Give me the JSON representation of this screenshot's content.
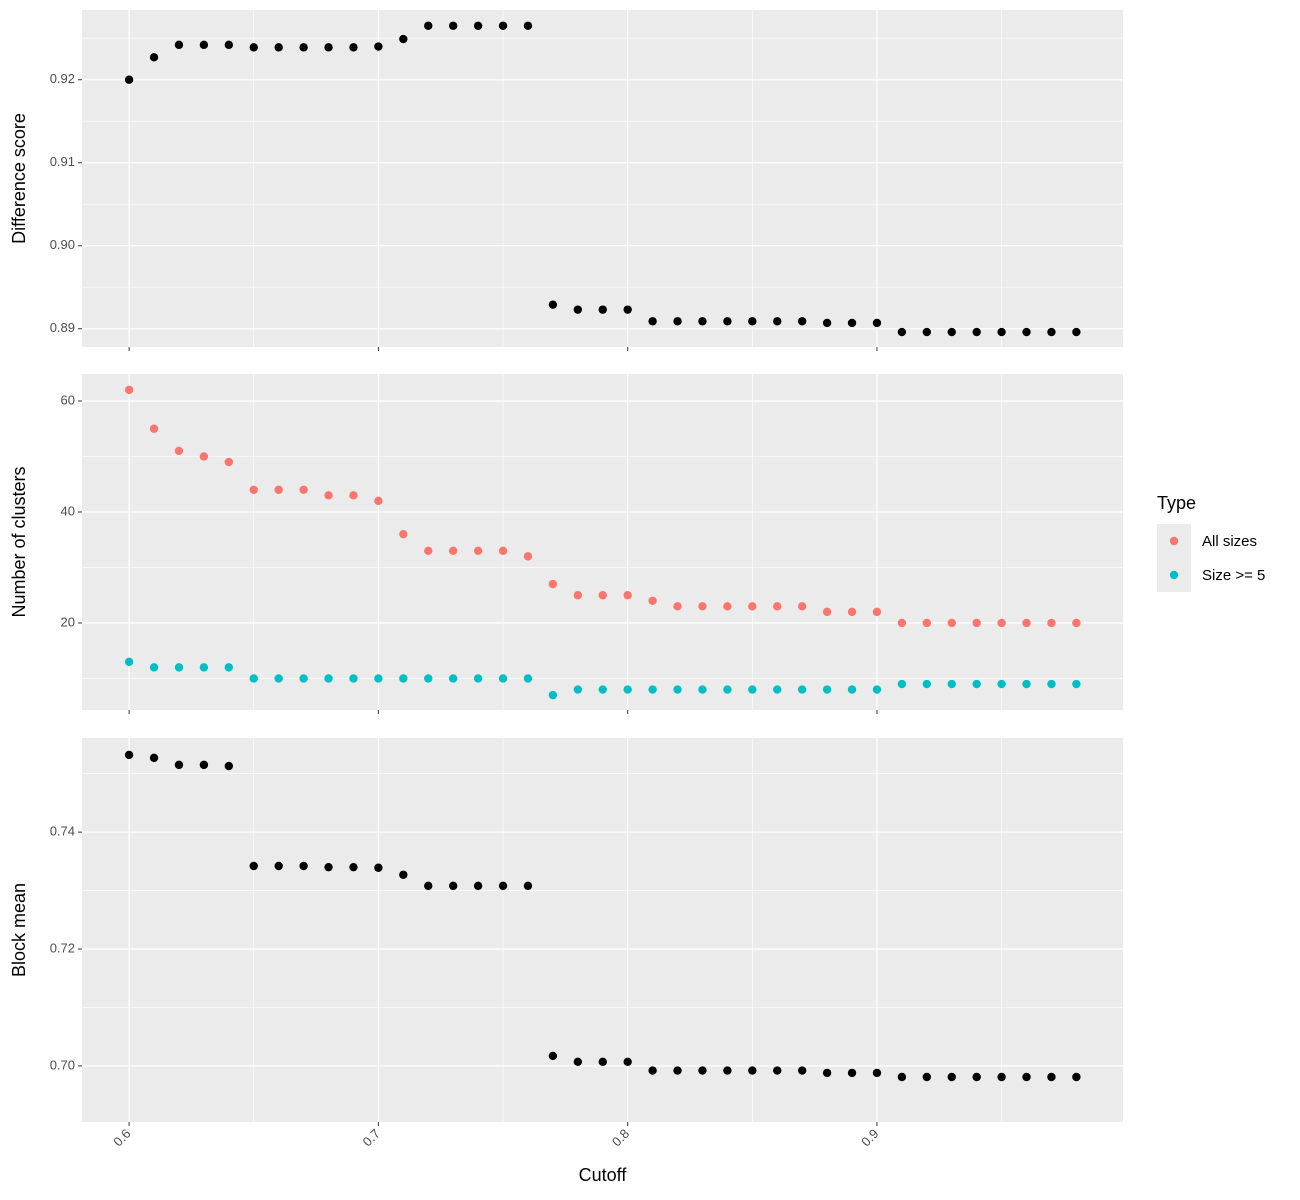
{
  "chart_data": [
    {
      "type": "scatter",
      "y_label": "Difference score",
      "color": "#000000",
      "x": [
        0.6,
        0.61,
        0.62,
        0.63,
        0.64,
        0.65,
        0.66,
        0.67,
        0.68,
        0.69,
        0.7,
        0.71,
        0.72,
        0.73,
        0.74,
        0.75,
        0.76,
        0.77,
        0.78,
        0.79,
        0.8,
        0.81,
        0.82,
        0.83,
        0.84,
        0.85,
        0.86,
        0.87,
        0.88,
        0.89,
        0.9,
        0.91,
        0.92,
        0.93,
        0.94,
        0.95,
        0.96,
        0.97,
        0.98
      ],
      "values": [
        0.92,
        0.9227,
        0.9242,
        0.9242,
        0.9242,
        0.9239,
        0.9239,
        0.9239,
        0.9239,
        0.9239,
        0.924,
        0.9249,
        0.9265,
        0.9265,
        0.9265,
        0.9265,
        0.9265,
        0.8929,
        0.8923,
        0.8923,
        0.8923,
        0.8909,
        0.8909,
        0.8909,
        0.8909,
        0.8909,
        0.8909,
        0.8909,
        0.8907,
        0.8907,
        0.8907,
        0.8896,
        0.8896,
        0.8896,
        0.8896,
        0.8896,
        0.8896,
        0.8896,
        0.8896
      ],
      "xlim": [
        0.5811,
        0.9987
      ],
      "xticks": [
        0.6,
        0.7,
        0.8,
        0.9
      ],
      "ylim": [
        0.8878,
        0.9284
      ],
      "yticks": [
        {
          "value": 0.89,
          "label": "0.89"
        },
        {
          "value": 0.9,
          "label": "0.90"
        },
        {
          "value": 0.91,
          "label": "0.91"
        },
        {
          "value": 0.92,
          "label": "0.92"
        }
      ],
      "grid": true
    },
    {
      "type": "scatter",
      "y_label": "Number of clusters",
      "legend_title": "Type",
      "legend": "right",
      "x": [
        0.6,
        0.61,
        0.62,
        0.63,
        0.64,
        0.65,
        0.66,
        0.67,
        0.68,
        0.69,
        0.7,
        0.71,
        0.72,
        0.73,
        0.74,
        0.75,
        0.76,
        0.77,
        0.78,
        0.79,
        0.8,
        0.81,
        0.82,
        0.83,
        0.84,
        0.85,
        0.86,
        0.87,
        0.88,
        0.89,
        0.9,
        0.91,
        0.92,
        0.93,
        0.94,
        0.95,
        0.96,
        0.97,
        0.98
      ],
      "series": [
        {
          "name": "All sizes",
          "color": "#F8766D",
          "values": [
            62,
            55,
            51,
            50,
            49,
            44,
            44,
            44,
            43,
            43,
            42,
            36,
            33,
            33,
            33,
            33,
            32,
            27,
            25,
            25,
            25,
            24,
            23,
            23,
            23,
            23,
            23,
            23,
            22,
            22,
            22,
            20,
            20,
            20,
            20,
            20,
            20,
            20,
            20
          ]
        },
        {
          "name": "Size >= 5",
          "color": "#00BFC4",
          "values": [
            13,
            12,
            12,
            12,
            12,
            10,
            10,
            10,
            10,
            10,
            10,
            10,
            10,
            10,
            10,
            10,
            10,
            7,
            8,
            8,
            8,
            8,
            8,
            8,
            8,
            8,
            8,
            8,
            8,
            8,
            8,
            9,
            9,
            9,
            9,
            9,
            9,
            9,
            9
          ]
        }
      ],
      "xlim": [
        0.5811,
        0.9987
      ],
      "xticks": [
        0.6,
        0.7,
        0.8,
        0.9
      ],
      "ylim": [
        4.32,
        64.86
      ],
      "yticks": [
        20,
        40,
        60
      ],
      "grid": true
    },
    {
      "type": "scatter",
      "y_label": "Block mean",
      "x_label": "Cutoff",
      "color": "#000000",
      "x": [
        0.6,
        0.61,
        0.62,
        0.63,
        0.64,
        0.65,
        0.66,
        0.67,
        0.68,
        0.69,
        0.7,
        0.71,
        0.72,
        0.73,
        0.74,
        0.75,
        0.76,
        0.77,
        0.78,
        0.79,
        0.8,
        0.81,
        0.82,
        0.83,
        0.84,
        0.85,
        0.86,
        0.87,
        0.88,
        0.89,
        0.9,
        0.91,
        0.92,
        0.93,
        0.94,
        0.95,
        0.96,
        0.97,
        0.98
      ],
      "values": [
        0.7532,
        0.7527,
        0.7515,
        0.7515,
        0.7513,
        0.7342,
        0.7342,
        0.7342,
        0.734,
        0.734,
        0.7339,
        0.7327,
        0.7308,
        0.7308,
        0.7308,
        0.7308,
        0.7308,
        0.7017,
        0.7007,
        0.7007,
        0.7007,
        0.6992,
        0.6992,
        0.6992,
        0.6992,
        0.6992,
        0.6992,
        0.6992,
        0.6988,
        0.6988,
        0.6988,
        0.6981,
        0.6981,
        0.6981,
        0.6981,
        0.6981,
        0.6981,
        0.6981,
        0.6981
      ],
      "xlim": [
        0.5811,
        0.9987
      ],
      "xticks": [
        0.6,
        0.7,
        0.8,
        0.9
      ],
      "ylim": [
        0.6904,
        0.7561
      ],
      "yticks": [
        {
          "value": 0.7,
          "label": "0.70"
        },
        {
          "value": 0.72,
          "label": "0.72"
        },
        {
          "value": 0.74,
          "label": "0.74"
        }
      ],
      "grid": true
    }
  ]
}
